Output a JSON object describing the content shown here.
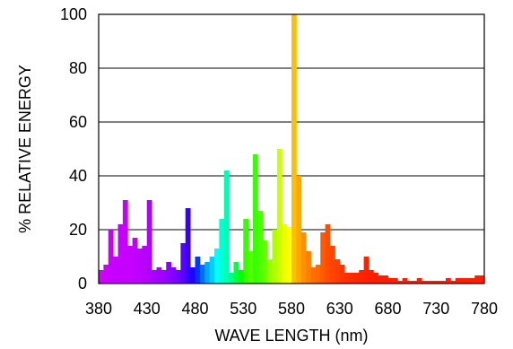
{
  "chart_data": {
    "type": "bar",
    "title": "",
    "xlabel": "WAVE LENGTH (nm)",
    "ylabel": "% RELATIVE ENERGY",
    "xlim": [
      380,
      780
    ],
    "ylim": [
      0,
      100
    ],
    "x_ticks": [
      "380",
      "430",
      "480",
      "530",
      "580",
      "630",
      "680",
      "730",
      "780"
    ],
    "y_ticks": [
      "0",
      "20",
      "40",
      "60",
      "80",
      "100"
    ],
    "grid": "horizontal",
    "bar_width_nm": 5,
    "colors": {
      "violet": "#c600ff",
      "purple": "#9e00ff",
      "blue": "#1d00ff",
      "cyan": "#00ffff",
      "green": "#35ff00",
      "yellow": "#ffff00",
      "amber": "#ffbf00",
      "orange": "#ff6a00",
      "red": "#ff1f00"
    },
    "series": [
      {
        "x": [
          380,
          385,
          390,
          395,
          400,
          405,
          410,
          415,
          420,
          425,
          430,
          435,
          440,
          445,
          450,
          455,
          460,
          465,
          470,
          475,
          480,
          485,
          490,
          495,
          500,
          505,
          510,
          515,
          520,
          525,
          530,
          535,
          540,
          545,
          550,
          555,
          560,
          565,
          570,
          575,
          580,
          585,
          590,
          595,
          600,
          605,
          610,
          615,
          620,
          625,
          630,
          635,
          640,
          645,
          650,
          655,
          660,
          665,
          670,
          675,
          680,
          685,
          690,
          695,
          700,
          705,
          710,
          715,
          720,
          725,
          730,
          735,
          740,
          745,
          750,
          755,
          760,
          765,
          770,
          775
        ],
        "values": [
          5,
          7,
          20,
          10,
          22,
          31,
          14,
          17,
          13,
          14,
          31,
          5,
          6,
          5,
          8,
          6,
          5,
          15,
          28,
          6,
          10,
          7,
          8,
          10,
          13,
          24,
          42,
          4,
          8,
          5,
          24,
          12,
          48,
          27,
          16,
          9,
          20,
          50,
          22,
          21,
          100,
          40,
          19,
          12,
          6,
          7,
          19,
          22,
          14,
          9,
          7,
          4,
          4,
          4,
          5,
          10,
          5,
          4,
          3,
          3,
          2,
          2,
          1,
          2,
          1,
          1,
          2,
          1,
          1,
          1,
          1,
          1,
          2,
          1,
          2,
          2,
          2,
          2,
          3,
          3
        ],
        "colors": [
          "#d400ff",
          "#cc00ff",
          "#c600ff",
          "#c600ff",
          "#c600ff",
          "#c600ff",
          "#c600ff",
          "#c000ff",
          "#c000ff",
          "#b800ff",
          "#b000ff",
          "#a800ff",
          "#a000ff",
          "#9e00ff",
          "#8c00ff",
          "#8000ff",
          "#7000ff",
          "#5a00ff",
          "#3300ff",
          "#1d00ff",
          "#0037ff",
          "#0070ff",
          "#00a8ff",
          "#00d0ff",
          "#00ffff",
          "#00ffd4",
          "#00ffb0",
          "#00ff80",
          "#00ff40",
          "#00ff00",
          "#35ff00",
          "#55ff00",
          "#35ff00",
          "#4dff00",
          "#66ff00",
          "#99ff00",
          "#b0ff00",
          "#ccff00",
          "#eeff00",
          "#ffff00",
          "#ffbf00",
          "#ffa600",
          "#ff9000",
          "#ff8000",
          "#ff7000",
          "#ff6a00",
          "#ff5a00",
          "#ff4d00",
          "#ff4500",
          "#ff3f00",
          "#ff3500",
          "#ff2e00",
          "#ff2a00",
          "#ff2600",
          "#ff2300",
          "#ff2000",
          "#ff1f00",
          "#ff1f00",
          "#ff1f00",
          "#ff1f00",
          "#ff1f00",
          "#ff1f00",
          "#ff1f00",
          "#ff1f00",
          "#ff1f00",
          "#ff1f00",
          "#ff1f00",
          "#ff1f00",
          "#ff1f00",
          "#ff1f00",
          "#ff1f00",
          "#ff1f00",
          "#ff1f00",
          "#ff1f00",
          "#ff1f00",
          "#ff1f00",
          "#ff1f00",
          "#ff1f00",
          "#ff1f00",
          "#ff1f00"
        ]
      }
    ]
  }
}
